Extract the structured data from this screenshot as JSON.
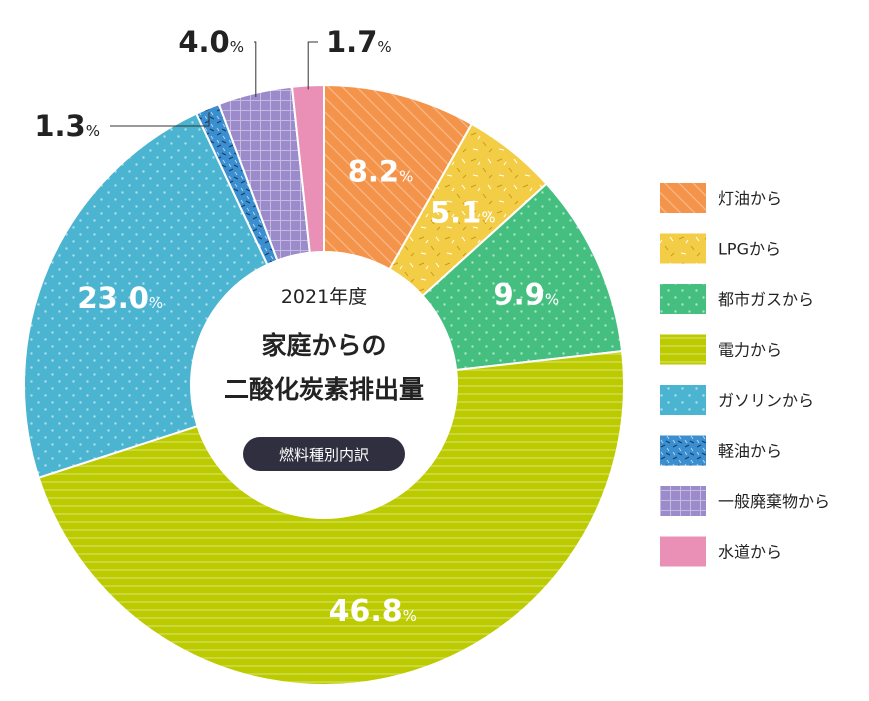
{
  "center": {
    "year": "2021年度",
    "title_line1": "家庭からの",
    "title_line2": "二酸化炭素排出量",
    "badge": "燃料種別内訳"
  },
  "chart_data": {
    "type": "pie",
    "unit": "%",
    "categories": [
      "灯油から",
      "LPGから",
      "都市ガスから",
      "電力から",
      "ガソリンから",
      "軽油から",
      "一般廃棄物から",
      "水道から"
    ],
    "values": [
      8.2,
      5.1,
      9.9,
      46.8,
      23.0,
      1.3,
      4.0,
      1.7
    ],
    "value_labels": [
      "8.2",
      "5.1",
      "9.9",
      "46.8",
      "23.0",
      "1.3",
      "4.0",
      "1.7"
    ],
    "colors": [
      "#f4934a",
      "#f4cd47",
      "#45bf80",
      "#bccb00",
      "#4bb4d1",
      "#3b8fd0",
      "#9c8bcb",
      "#ea8fb6"
    ],
    "patterns": [
      "diagonal-stripes",
      "confetti",
      "dots",
      "horizontal-stripes",
      "dots",
      "dashes",
      "grid",
      "solid"
    ],
    "legend_position": "right",
    "donut": true
  }
}
